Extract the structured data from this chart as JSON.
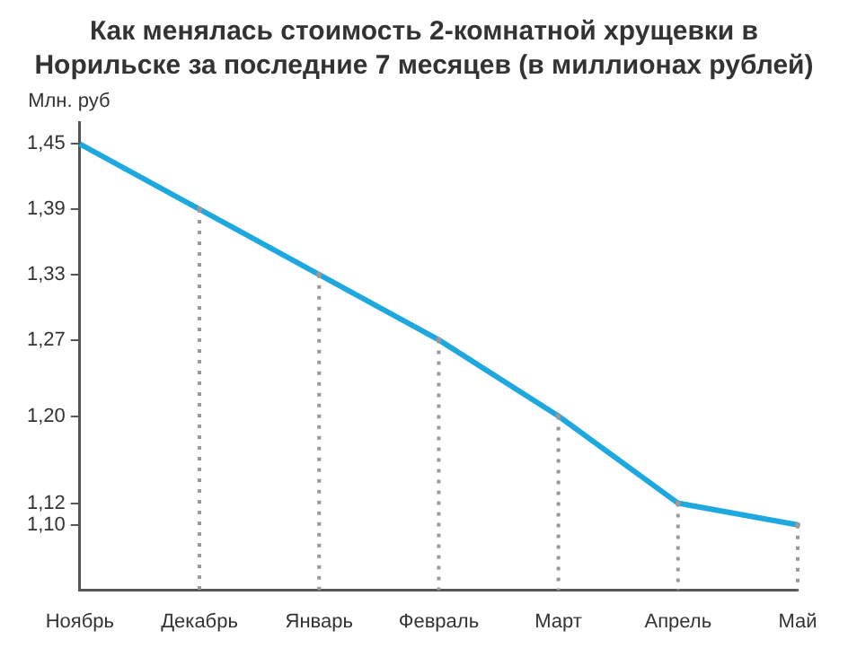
{
  "chart_data": {
    "type": "line",
    "title": "Как менялась стоимость 2-комнатной хрущевки в Норильске за последние 7 месяцев (в миллионах рублей)",
    "ylabel": "Млн. руб",
    "categories": [
      "Ноябрь",
      "Декабрь",
      "Январь",
      "Февраль",
      "Март",
      "Апрель",
      "Май"
    ],
    "series": [
      {
        "type": "lollipop",
        "color": "#999999",
        "line_style": "dotted",
        "marker": "circle",
        "values": [
          null,
          1.39,
          1.33,
          1.27,
          1.2,
          1.12,
          1.1
        ]
      },
      {
        "color": "#1ea8e0",
        "values": [
          1.45,
          1.39,
          1.33,
          1.27,
          1.2,
          1.12,
          1.1
        ]
      }
    ],
    "ylim": [
      1.04,
      1.47
    ],
    "yticks": [
      {
        "value": 1.45,
        "label": "1,45"
      },
      {
        "value": 1.39,
        "label": "1,39"
      },
      {
        "value": 1.33,
        "label": "1,33"
      },
      {
        "value": 1.27,
        "label": "1,27"
      },
      {
        "value": 1.2,
        "label": "1,20"
      },
      {
        "value": 1.12,
        "label": "1,12"
      },
      {
        "value": 1.1,
        "label": "1,10"
      }
    ],
    "legend": false,
    "marker": "none",
    "line_style": "solid"
  }
}
